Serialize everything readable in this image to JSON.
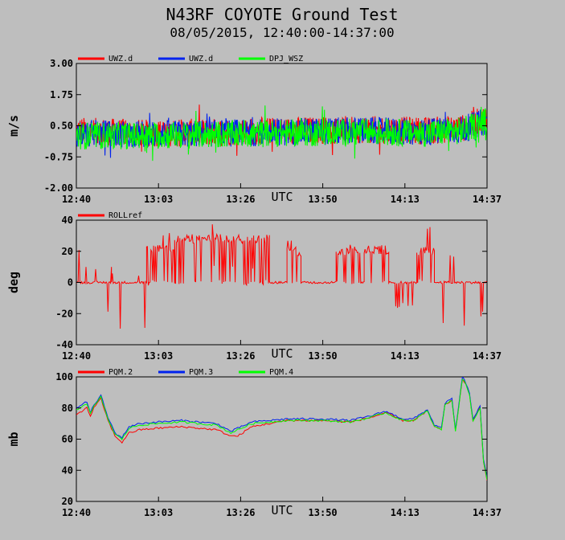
{
  "title": "N43RF COYOTE Ground Test",
  "subtitle": "08/05/2015, 12:40:00-14:37:00",
  "colors": {
    "red": "#ff0000",
    "blue": "#0022ee",
    "green": "#00ff00",
    "background": "#bebebe"
  },
  "chart_data": [
    {
      "type": "line",
      "ylabel": "m/s",
      "xlabel": "UTC",
      "ylim": [
        -2.0,
        3.0
      ],
      "yticks": [
        "3.00",
        "1.75",
        "0.50",
        "-0.75",
        "-2.00"
      ],
      "xticks": [
        "12:40",
        "13:03",
        "13:26",
        "13:50",
        "14:13",
        "14:37"
      ],
      "xrange": [
        "12:40",
        "14:37"
      ],
      "legend_placement": "top-left",
      "series": [
        {
          "name": "UWZ.d",
          "color": "red",
          "x": [
            "12:40",
            "13:00",
            "13:20",
            "13:40",
            "14:00",
            "14:20",
            "14:30",
            "14:37"
          ],
          "values": [
            0.3,
            0.2,
            0.25,
            0.3,
            0.35,
            0.3,
            0.4,
            0.8
          ]
        },
        {
          "name": "UWZ.d",
          "color": "blue",
          "x": [
            "12:40",
            "13:00",
            "13:20",
            "13:40",
            "14:00",
            "14:20",
            "14:30",
            "14:37"
          ],
          "values": [
            0.2,
            0.15,
            0.2,
            0.25,
            0.3,
            0.25,
            0.35,
            0.7
          ]
        },
        {
          "name": "DPJ_WSZ",
          "color": "green",
          "x": [
            "12:40",
            "13:00",
            "13:20",
            "13:40",
            "14:00",
            "14:20",
            "14:30",
            "14:37"
          ],
          "values": [
            0.1,
            0.1,
            0.15,
            0.2,
            0.25,
            0.2,
            0.3,
            0.7
          ]
        }
      ]
    },
    {
      "type": "line",
      "ylabel": "deg",
      "xlabel": "UTC",
      "ylim": [
        -40,
        40
      ],
      "yticks": [
        "40",
        "20",
        "0",
        "-20",
        "-40"
      ],
      "xticks": [
        "12:40",
        "13:03",
        "13:26",
        "13:50",
        "14:13",
        "14:37"
      ],
      "xrange": [
        "12:40",
        "14:37"
      ],
      "legend_placement": "top-left",
      "series": [
        {
          "name": "ROLLref",
          "color": "red",
          "segments": [
            {
              "from": "12:40",
              "to": "12:50",
              "level": 0,
              "spikes": [
                22,
                -18,
                10
              ]
            },
            {
              "from": "12:50",
              "to": "13:00",
              "level": 0,
              "spikes": [
                -30,
                5
              ]
            },
            {
              "from": "13:00",
              "to": "13:08",
              "level": 22,
              "spikes": [
                30,
                0
              ]
            },
            {
              "from": "13:08",
              "to": "13:35",
              "level": 28,
              "spikes": [
                38,
                0,
                10
              ]
            },
            {
              "from": "13:35",
              "to": "13:40",
              "level": 0,
              "spikes": []
            },
            {
              "from": "13:40",
              "to": "13:44",
              "level": 20,
              "spikes": [
                25
              ]
            },
            {
              "from": "13:44",
              "to": "13:54",
              "level": 0,
              "spikes": []
            },
            {
              "from": "13:54",
              "to": "14:01",
              "level": 20,
              "spikes": [
                24
              ]
            },
            {
              "from": "14:01",
              "to": "14:02",
              "level": 0,
              "spikes": []
            },
            {
              "from": "14:02",
              "to": "14:09",
              "level": 21,
              "spikes": [
                23
              ]
            },
            {
              "from": "14:09",
              "to": "14:17",
              "level": 0,
              "spikes": [
                -15
              ]
            },
            {
              "from": "14:17",
              "to": "14:22",
              "level": 20,
              "spikes": [
                36,
                0
              ]
            },
            {
              "from": "14:22",
              "to": "14:37",
              "level": 0,
              "spikes": [
                -26,
                15,
                18,
                -20
              ]
            }
          ]
        }
      ]
    },
    {
      "type": "line",
      "ylabel": "mb",
      "xlabel": "UTC",
      "ylim": [
        20,
        100
      ],
      "yticks": [
        "100",
        "80",
        "60",
        "40",
        "20"
      ],
      "xticks": [
        "12:40",
        "13:03",
        "13:26",
        "13:50",
        "14:13",
        "14:37"
      ],
      "xrange": [
        "12:40",
        "14:37"
      ],
      "legend_placement": "top-left",
      "series": [
        {
          "name": "PQM.2",
          "color": "red",
          "x": [
            "12:40",
            "12:43",
            "12:44",
            "12:45",
            "12:47",
            "12:49",
            "12:51",
            "12:53",
            "12:55",
            "12:58",
            "13:03",
            "13:10",
            "13:20",
            "13:24",
            "13:26",
            "13:30",
            "13:40",
            "13:50",
            "13:58",
            "14:04",
            "14:08",
            "14:13",
            "14:16",
            "14:20",
            "14:22",
            "14:24",
            "14:25",
            "14:27",
            "14:28",
            "14:30",
            "14:31",
            "14:32",
            "14:33",
            "14:35",
            "14:36",
            "14:37"
          ],
          "values": [
            76,
            80,
            75,
            80,
            86,
            72,
            62,
            58,
            64,
            66,
            67,
            68,
            66,
            62,
            62,
            68,
            72,
            72,
            71,
            74,
            77,
            72,
            72,
            78,
            68,
            66,
            82,
            85,
            65,
            99,
            95,
            88,
            72,
            80,
            46,
            34
          ]
        },
        {
          "name": "PQM.3",
          "color": "blue",
          "x": [
            "12:40",
            "12:43",
            "12:44",
            "12:45",
            "12:47",
            "12:49",
            "12:51",
            "12:53",
            "12:55",
            "12:58",
            "13:03",
            "13:10",
            "13:20",
            "13:24",
            "13:26",
            "13:30",
            "13:40",
            "13:50",
            "13:58",
            "14:04",
            "14:08",
            "14:13",
            "14:16",
            "14:20",
            "14:22",
            "14:24",
            "14:25",
            "14:27",
            "14:28",
            "14:30",
            "14:31",
            "14:32",
            "14:33",
            "14:35",
            "14:36",
            "14:37"
          ],
          "values": [
            80,
            84,
            77,
            82,
            88,
            74,
            64,
            61,
            68,
            70,
            71,
            72,
            70,
            65,
            67,
            71,
            73,
            73,
            72,
            75,
            78,
            73,
            73,
            79,
            69,
            67,
            83,
            86,
            66,
            100,
            96,
            89,
            73,
            81,
            47,
            35
          ]
        },
        {
          "name": "PQM.4",
          "color": "green",
          "x": [
            "12:40",
            "12:43",
            "12:44",
            "12:45",
            "12:47",
            "12:49",
            "12:51",
            "12:53",
            "12:55",
            "12:58",
            "13:03",
            "13:10",
            "13:20",
            "13:24",
            "13:26",
            "13:30",
            "13:40",
            "13:50",
            "13:58",
            "14:04",
            "14:08",
            "14:13",
            "14:16",
            "14:20",
            "14:22",
            "14:24",
            "14:25",
            "14:27",
            "14:28",
            "14:30",
            "14:31",
            "14:32",
            "14:33",
            "14:35",
            "14:36",
            "14:37"
          ],
          "values": [
            79,
            83,
            76,
            81,
            87,
            73,
            63,
            60,
            67,
            69,
            70,
            71,
            69,
            64,
            66,
            70,
            72,
            72,
            71,
            74,
            77,
            72,
            72,
            78,
            68,
            66,
            82,
            85,
            65,
            99,
            95,
            88,
            72,
            80,
            46,
            34
          ]
        }
      ]
    }
  ]
}
